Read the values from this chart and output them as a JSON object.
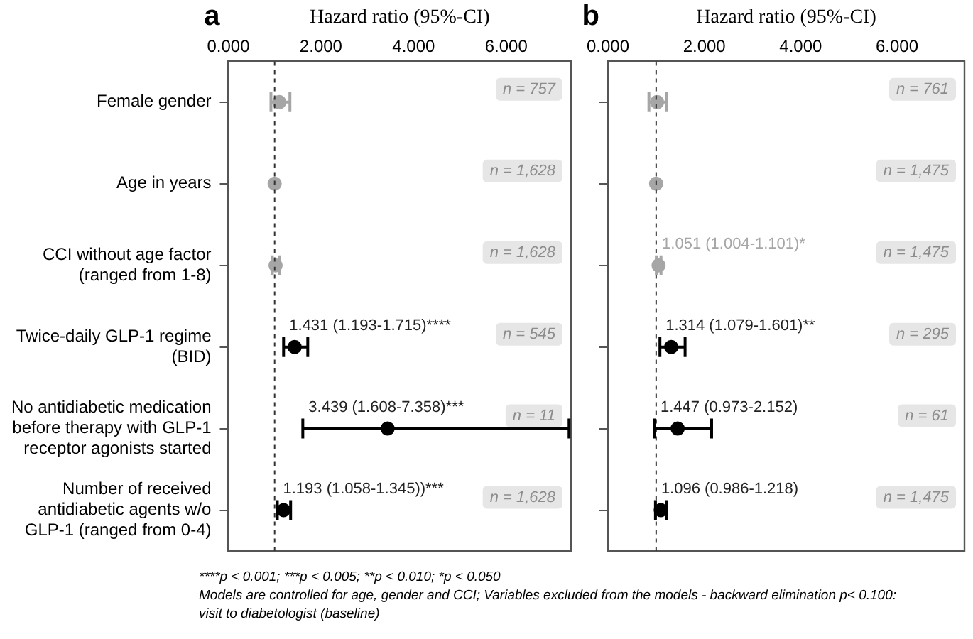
{
  "chart_data": [
    {
      "type": "scatter",
      "orientation": "horizontal",
      "title": "a",
      "xlabel": "Hazard ratio (95%-CI)",
      "categories": [
        "Female gender",
        "Age in years",
        "CCI without age factor\n(ranged from 1-8)",
        "Twice-daily GLP-1 regime\n(BID)",
        "No antidiabetic medication\nbefore therapy with GLP-1\nreceptor agonists started",
        "Number of received\nantidiabetic agents w/o\nGLP-1 (ranged from 0-4)"
      ],
      "values": [
        1.1,
        1.0,
        1.02,
        1.431,
        3.439,
        1.193
      ],
      "errors": [
        [
          0.92,
          1.33
        ],
        null,
        [
          0.95,
          1.1
        ],
        [
          1.193,
          1.715
        ],
        [
          1.608,
          7.358
        ],
        [
          1.058,
          1.345
        ]
      ],
      "colors": [
        "#a6a6a6",
        "#a6a6a6",
        "#a6a6a6",
        "#000000",
        "#000000",
        "#000000"
      ],
      "value_labels": [
        null,
        null,
        null,
        "1.431 (1.193-1.715)****",
        "3.439 (1.608-7.358)***",
        "1.193 (1.058-1.345))***"
      ],
      "marker": "circle",
      "xlim": [
        0,
        7.4
      ],
      "xticks": [
        {
          "value": 0,
          "label": "0.000"
        },
        {
          "value": 2,
          "label": "2.000"
        },
        {
          "value": 4,
          "label": "4.000"
        },
        {
          "value": 6,
          "label": "6.000"
        }
      ],
      "ref_lines": [
        {
          "axis": "x",
          "value": 1,
          "line_style": "dashed"
        }
      ],
      "grid": false,
      "annotations": [
        "n = 757",
        "n = 1,628",
        "n = 1,628",
        "n = 545",
        "n = 11",
        "n = 1,628",
        "****p < 0.001; ***p < 0.005; **p < 0.010; *p < 0.050",
        "Models are controlled for age, gender and CCI; Variables excluded from the models - backward elimination p< 0.100:",
        "visit to diabetologist (baseline)"
      ]
    },
    {
      "type": "scatter",
      "orientation": "horizontal",
      "title": "b",
      "xlabel": "Hazard ratio (95%-CI)",
      "categories": [
        null,
        null,
        null,
        null,
        null,
        null
      ],
      "values": [
        1.02,
        1.0,
        1.051,
        1.314,
        1.447,
        1.096
      ],
      "errors": [
        [
          0.85,
          1.22
        ],
        null,
        [
          1.004,
          1.101
        ],
        [
          1.079,
          1.601
        ],
        [
          0.973,
          2.152
        ],
        [
          0.986,
          1.218
        ]
      ],
      "colors": [
        "#a6a6a6",
        "#a6a6a6",
        "#a6a6a6",
        "#000000",
        "#000000",
        "#000000"
      ],
      "value_labels": [
        null,
        null,
        "1.051 (1.004-1.101)*",
        "1.314 (1.079-1.601)**",
        "1.447 (0.973-2.152)",
        "1.096 (0.986-1.218)"
      ],
      "marker": "circle",
      "xlim": [
        0,
        7.4
      ],
      "xticks": [
        {
          "value": 0,
          "label": "0.000"
        },
        {
          "value": 2,
          "label": "2.000"
        },
        {
          "value": 4,
          "label": "4.000"
        },
        {
          "value": 6,
          "label": "6.000"
        }
      ],
      "ref_lines": [
        {
          "axis": "x",
          "value": 1,
          "line_style": "dashed"
        }
      ],
      "grid": false,
      "annotations": [
        "n = 761",
        "n = 1,475",
        "n = 1,475",
        "n = 295",
        "n = 61",
        "n = 1,475"
      ]
    }
  ]
}
